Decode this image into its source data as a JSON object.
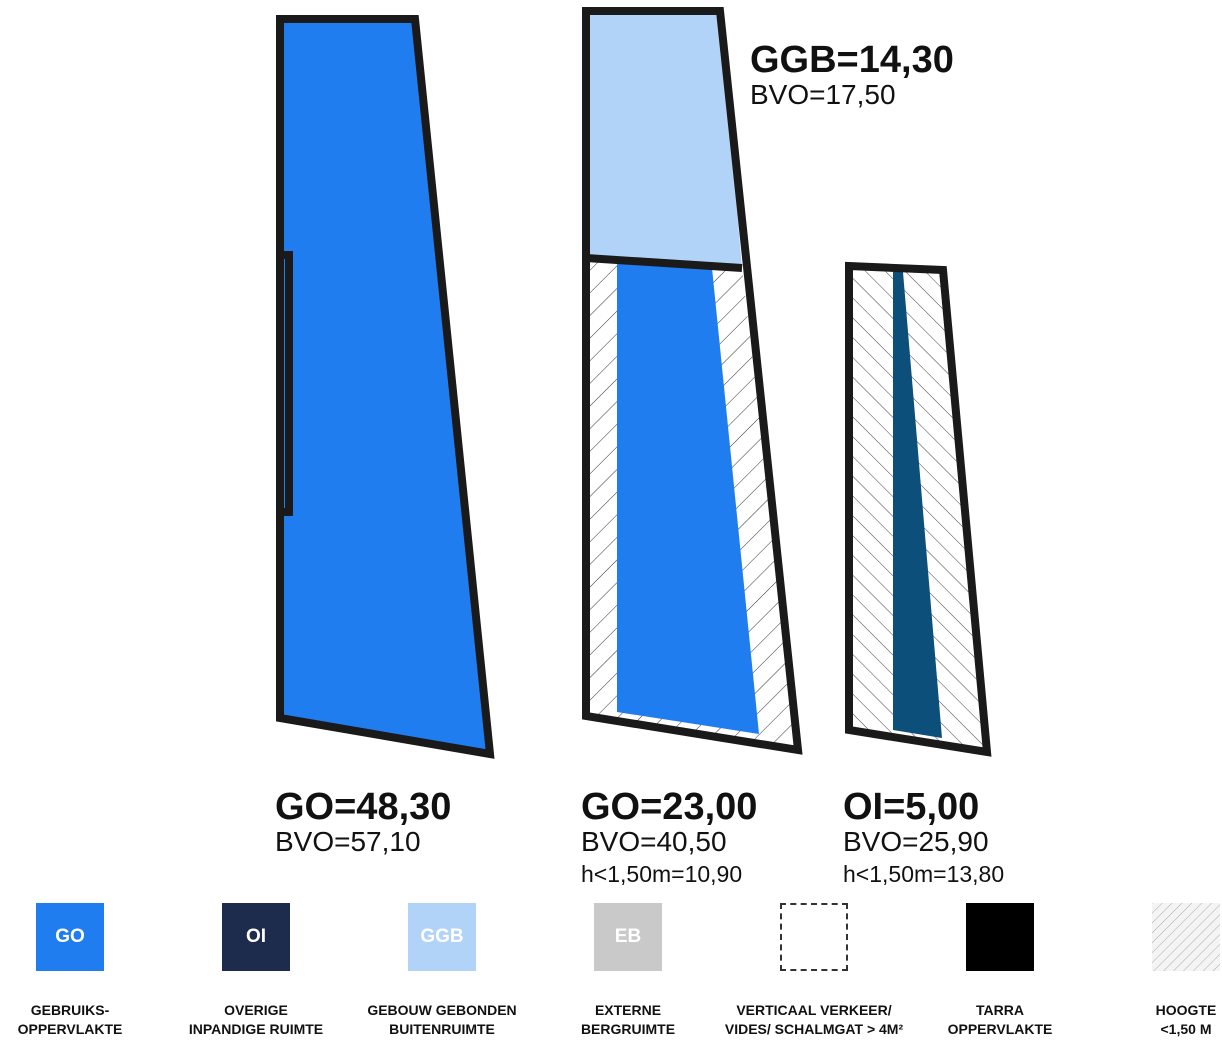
{
  "colors": {
    "go": "#1f7df0",
    "oi": "#1d2c4d",
    "ggb": "#b1d3f8",
    "eb": "#c9c9c9",
    "tarra": "#000000",
    "outline": "#1a1a1a",
    "dark_teal": "#0c4f7a"
  },
  "shapes": {
    "left": {
      "go": "GO=48,30",
      "bvo": "BVO=57,10"
    },
    "middle_top": {
      "ggb": "GGB=14,30",
      "bvo": "BVO=17,50"
    },
    "middle": {
      "go": "GO=23,00",
      "bvo": "BVO=40,50",
      "low": "h<1,50m=10,90"
    },
    "right": {
      "oi": "OI=5,00",
      "bvo": "BVO=25,90",
      "low": "h<1,50m=13,80"
    }
  },
  "legend": {
    "go": {
      "code": "GO",
      "line1": "GEBRUIKS-",
      "line2": "OPPERVLAKTE"
    },
    "oi": {
      "code": "OI",
      "line1": "OVERIGE",
      "line2": "INPANDIGE RUIMTE"
    },
    "ggb": {
      "code": "GGB",
      "line1": "GEBOUW GEBONDEN",
      "line2": "BUITENRUIMTE"
    },
    "eb": {
      "code": "EB",
      "line1": "EXTERNE",
      "line2": "BERGRUIMTE"
    },
    "vv": {
      "line1": "VERTICAAL VERKEER/",
      "line2": "VIDES/ SCHALMGAT > 4M²"
    },
    "tarra": {
      "line1": "TARRA",
      "line2": "OPPERVLAKTE"
    },
    "hoogte": {
      "line1": "HOOGTE",
      "line2": "<1,50 M"
    }
  }
}
